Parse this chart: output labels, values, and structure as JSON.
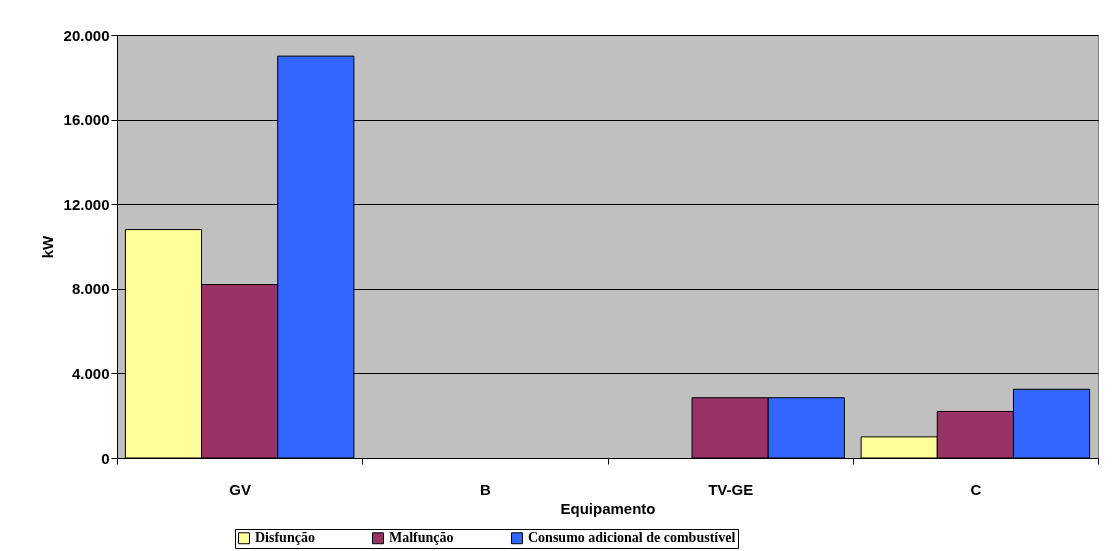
{
  "chart_data": {
    "type": "bar",
    "xlabel": "Equipamento",
    "ylabel": "kW",
    "categories": [
      "GV",
      "B",
      "TV-GE",
      "C"
    ],
    "series": [
      {
        "name": "Disfunção",
        "color": "#ffff99",
        "values": [
          10800,
          null,
          null,
          1000
        ]
      },
      {
        "name": "Malfunção",
        "color": "#993366",
        "values": [
          8200,
          null,
          2850,
          2200
        ]
      },
      {
        "name": "Consumo adicional de combustível",
        "color": "#3366ff",
        "values": [
          19000,
          null,
          2850,
          3250
        ]
      }
    ],
    "ylim": [
      0,
      20000
    ],
    "yticks": [
      {
        "value": 0,
        "label": "0"
      },
      {
        "value": 4000,
        "label": "4.000"
      },
      {
        "value": 8000,
        "label": "8.000"
      },
      {
        "value": 12000,
        "label": "12.000"
      },
      {
        "value": 16000,
        "label": "16.000"
      },
      {
        "value": 20000,
        "label": "20.000"
      }
    ],
    "grid": "y",
    "legend": "bottom"
  }
}
